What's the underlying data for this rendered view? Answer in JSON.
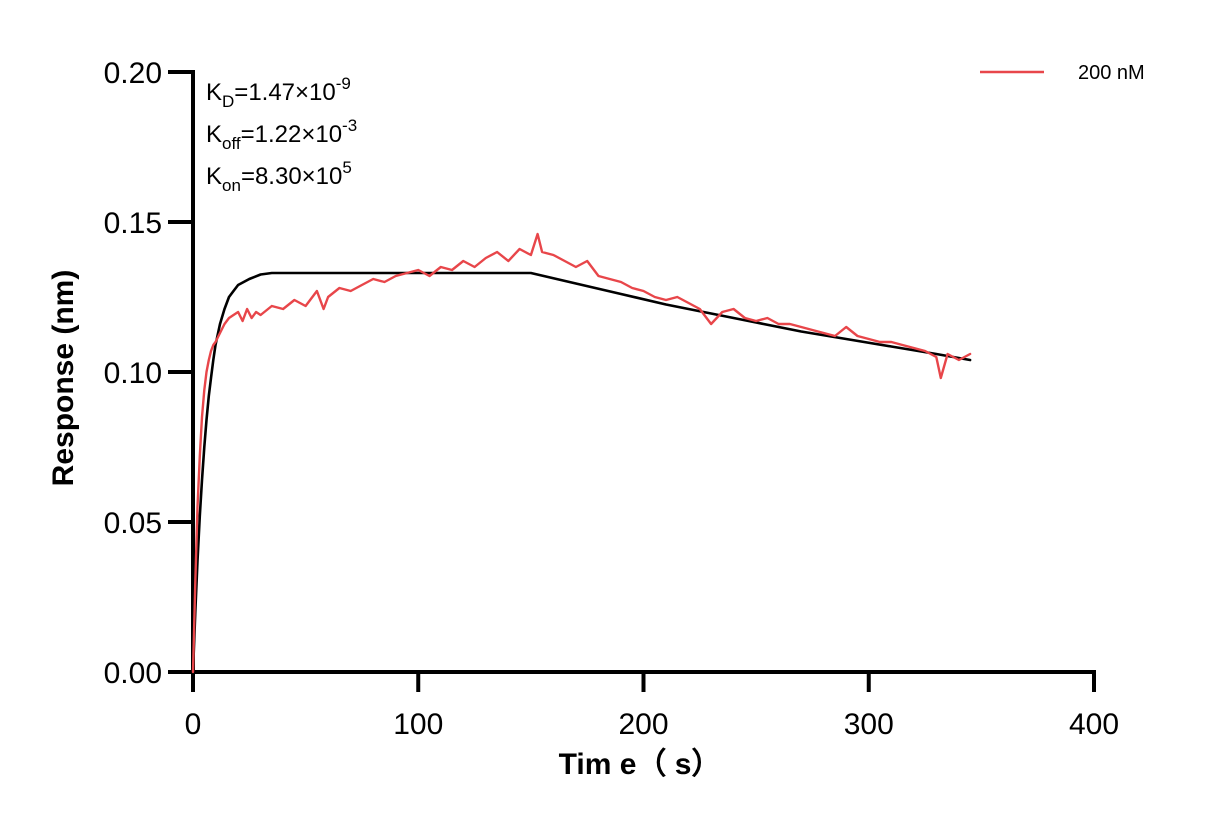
{
  "chart_data": {
    "type": "line",
    "title": "",
    "xlabel": "Tim e（ s）",
    "ylabel": "Response (nm)",
    "xlim": [
      0,
      400
    ],
    "ylim": [
      0,
      0.2
    ],
    "xticks": [
      0,
      100,
      200,
      300,
      400
    ],
    "yticks": [
      0.0,
      0.05,
      0.1,
      0.15,
      0.2
    ],
    "xtick_labels": [
      "0",
      "100",
      "200",
      "300",
      "400"
    ],
    "ytick_labels": [
      "0.00",
      "0.05",
      "0.10",
      "0.15",
      "0.20"
    ],
    "grid": false,
    "legend_position": "top-right",
    "annotations": [
      {
        "base": "K",
        "sub": "D",
        "mid": "=1.47×10",
        "sup": "-9"
      },
      {
        "base": "K",
        "sub": "off",
        "mid": "=1.22×10",
        "sup": "-3"
      },
      {
        "base": "K",
        "sub": "on",
        "mid": "=8.30×10",
        "sup": "5"
      }
    ],
    "series": [
      {
        "name": "200 nM",
        "color": "#e8464a",
        "x": [
          0,
          1,
          2,
          3,
          4,
          5,
          6,
          7,
          8,
          9,
          10,
          12,
          14,
          16,
          18,
          20,
          22,
          24,
          26,
          28,
          30,
          35,
          40,
          45,
          50,
          55,
          58,
          60,
          65,
          70,
          75,
          80,
          85,
          90,
          95,
          100,
          105,
          110,
          115,
          120,
          125,
          130,
          135,
          140,
          145,
          150,
          153,
          155,
          160,
          165,
          170,
          175,
          180,
          185,
          190,
          195,
          200,
          205,
          210,
          215,
          220,
          225,
          230,
          235,
          240,
          245,
          250,
          255,
          260,
          265,
          270,
          275,
          280,
          285,
          290,
          295,
          300,
          305,
          310,
          315,
          320,
          325,
          330,
          332,
          335,
          340,
          345
        ],
        "y": [
          0.0,
          0.03,
          0.055,
          0.072,
          0.085,
          0.094,
          0.1,
          0.104,
          0.107,
          0.109,
          0.11,
          0.113,
          0.116,
          0.118,
          0.119,
          0.12,
          0.117,
          0.121,
          0.118,
          0.12,
          0.119,
          0.122,
          0.121,
          0.124,
          0.122,
          0.127,
          0.121,
          0.125,
          0.128,
          0.127,
          0.129,
          0.131,
          0.13,
          0.132,
          0.133,
          0.134,
          0.132,
          0.135,
          0.134,
          0.137,
          0.135,
          0.138,
          0.14,
          0.137,
          0.141,
          0.139,
          0.146,
          0.14,
          0.139,
          0.137,
          0.135,
          0.137,
          0.132,
          0.131,
          0.13,
          0.128,
          0.127,
          0.125,
          0.124,
          0.125,
          0.123,
          0.121,
          0.116,
          0.12,
          0.121,
          0.118,
          0.117,
          0.118,
          0.116,
          0.116,
          0.115,
          0.114,
          0.113,
          0.112,
          0.115,
          0.112,
          0.111,
          0.11,
          0.11,
          0.109,
          0.108,
          0.107,
          0.105,
          0.098,
          0.106,
          0.104,
          0.106
        ]
      },
      {
        "name": "",
        "color": "#000000",
        "x": [
          0,
          1,
          2,
          3,
          4,
          5,
          6,
          7,
          8,
          9,
          10,
          12,
          14,
          16,
          18,
          20,
          25,
          30,
          35,
          40,
          60,
          80,
          100,
          120,
          140,
          150,
          170,
          190,
          210,
          230,
          250,
          270,
          290,
          310,
          330,
          345
        ],
        "y": [
          0.0,
          0.02,
          0.037,
          0.052,
          0.064,
          0.075,
          0.084,
          0.092,
          0.098,
          0.104,
          0.109,
          0.116,
          0.121,
          0.125,
          0.127,
          0.129,
          0.131,
          0.1325,
          0.133,
          0.133,
          0.133,
          0.133,
          0.133,
          0.133,
          0.133,
          0.133,
          0.1295,
          0.126,
          0.1225,
          0.1195,
          0.1165,
          0.1135,
          0.111,
          0.1085,
          0.106,
          0.104
        ]
      }
    ]
  }
}
